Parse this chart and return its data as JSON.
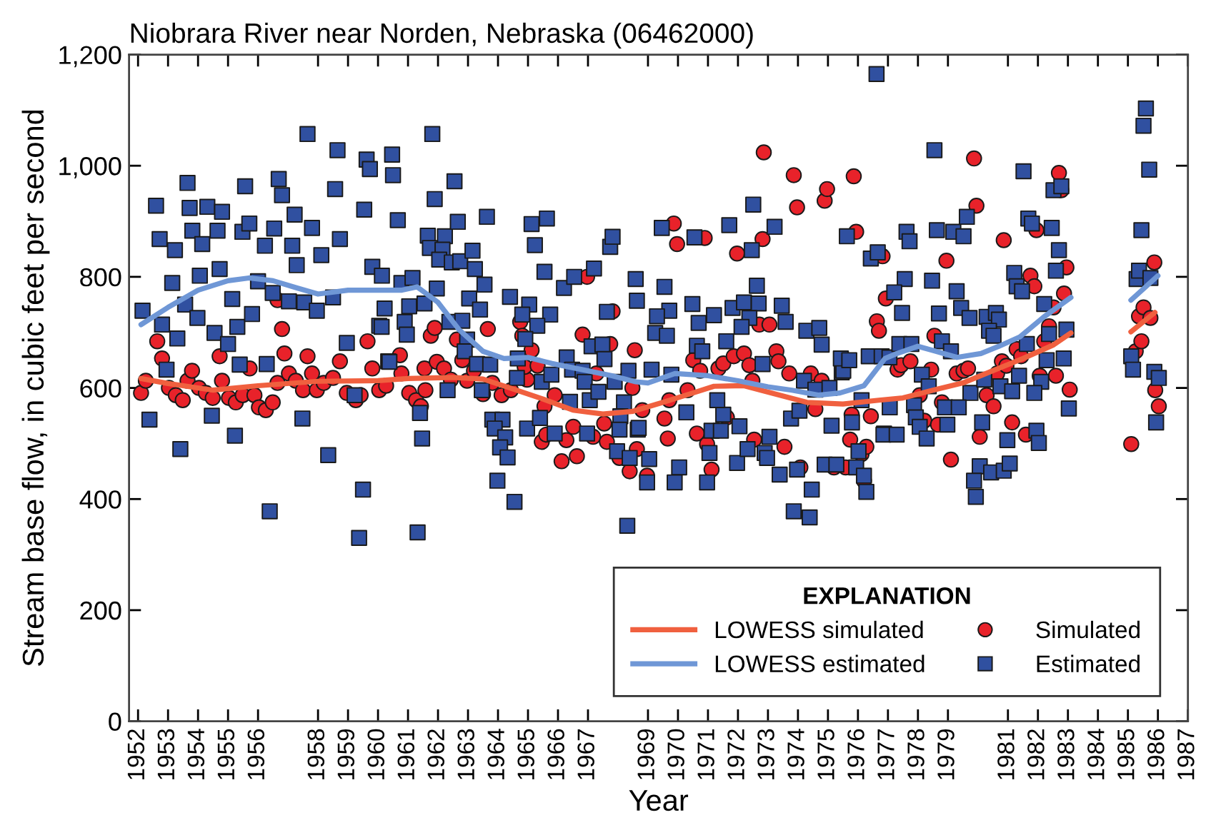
{
  "chart_data": {
    "type": "scatter",
    "title": "Niobrara River near Norden, Nebraska (06462000)",
    "xlabel": "Year",
    "ylabel": "Stream base flow, in cubic feet per second",
    "legend_title": "EXPLANATION",
    "legend": "bottom right",
    "xlim": [
      1951.7,
      1987.0
    ],
    "ylim": [
      0,
      1200
    ],
    "xticks": [
      1952,
      1953,
      1954,
      1955,
      1956,
      1958,
      1959,
      1960,
      1961,
      1962,
      1963,
      1964,
      1965,
      1966,
      1967,
      1969,
      1970,
      1971,
      1972,
      1973,
      1974,
      1975,
      1976,
      1977,
      1978,
      1979,
      1981,
      1982,
      1983,
      1984,
      1985,
      1986,
      1987
    ],
    "yticks": [
      0,
      200,
      400,
      600,
      800,
      {
        "value": 1000,
        "label": "1,000"
      },
      {
        "value": 1200,
        "label": "1,200"
      }
    ],
    "series": [
      {
        "name": "LOWESS simulated",
        "type": "line",
        "color": "#f0603f",
        "marker": "none",
        "x": [
          1952.1,
          1953.0,
          1954.5,
          1956.0,
          1958.0,
          1960.0,
          1961.0,
          1962.5,
          1963.5,
          1964.4,
          1965.5,
          1966.5,
          1967.5,
          1968.5,
          1969.5,
          1970.5,
          1971.2,
          1972.2,
          1973.1,
          1974.3,
          1975.5,
          1976.7,
          1977.5,
          1978.5,
          1979.5,
          1980.5,
          1981.5,
          1982.5,
          1983.1,
          1984.0,
          1985.1,
          1985.9
        ],
        "values": [
          617,
          608,
          596,
          604,
          612,
          613,
          617,
          619,
          616,
          600,
          580,
          560,
          553,
          558,
          574,
          591,
          603,
          604,
          591,
          574,
          571,
          578,
          582,
          596,
          609,
          631,
          653,
          677,
          699,
          null,
          701,
          736
        ]
      },
      {
        "name": "LOWESS estimated",
        "type": "line",
        "color": "#6f97d6",
        "marker": "none",
        "x": [
          1952.1,
          1953.0,
          1954.0,
          1955.0,
          1955.7,
          1956.5,
          1957.3,
          1958.0,
          1959.0,
          1960.3,
          1960.8,
          1961.3,
          1962.0,
          1962.7,
          1963.5,
          1964.2,
          1965.0,
          1965.8,
          1966.8,
          1967.8,
          1968.6,
          1969.0,
          1969.9,
          1971.0,
          1972.0,
          1973.0,
          1973.8,
          1974.7,
          1975.4,
          1976.2,
          1976.9,
          1977.3,
          1978.0,
          1978.6,
          1979.3,
          1980.1,
          1980.7,
          1981.4,
          1982.2,
          1983.1,
          1984.0,
          1985.1,
          1986.0
        ],
        "values": [
          714,
          745,
          776,
          793,
          798,
          793,
          780,
          769,
          776,
          776,
          776,
          782,
          754,
          705,
          666,
          653,
          655,
          644,
          633,
          622,
          611,
          609,
          626,
          622,
          613,
          602,
          596,
          587,
          591,
          604,
          653,
          662,
          675,
          666,
          655,
          662,
          675,
          692,
          728,
          763,
          null,
          758,
          802
        ]
      },
      {
        "name": "Simulated",
        "type": "scatter",
        "color": "#e8222a",
        "marker": "circle",
        "x": [
          1952.1,
          1952.26,
          1952.64,
          1952.8,
          1953.03,
          1953.26,
          1953.49,
          1953.65,
          1953.8,
          1954.03,
          1954.26,
          1954.49,
          1954.72,
          1954.8,
          1955.03,
          1955.26,
          1955.49,
          1955.72,
          1955.88,
          1956.03,
          1956.26,
          1956.49,
          1956.65,
          1956.65,
          1956.8,
          1956.88,
          1957.03,
          1957.26,
          1957.5,
          1957.65,
          1957.8,
          1957.96,
          1958.19,
          1958.5,
          1958.73,
          1958.96,
          1959.26,
          1959.42,
          1959.65,
          1959.81,
          1960.04,
          1960.27,
          1960.73,
          1960.78,
          1961.04,
          1961.27,
          1961.43,
          1961.58,
          1961.55,
          1961.76,
          1961.89,
          1961.96,
          1962.2,
          1962.43,
          1962.63,
          1962.81,
          1962.97,
          1963.2,
          1963.5,
          1963.66,
          1963.81,
          1964.12,
          1964.43,
          1964.74,
          1964.81,
          1965.12,
          1964.97,
          1964.89,
          1965.32,
          1965.55,
          1965.46,
          1965.61,
          1965.89,
          1966.12,
          1966.28,
          1966.51,
          1966.63,
          1966.82,
          1966.97,
          1967.17,
          1967.28,
          1967.54,
          1967.63,
          1967.74,
          1967.82,
          1968.05,
          1968.39,
          1968.48,
          1968.56,
          1968.63,
          1968.81,
          1968.97,
          1969.71,
          1969.66,
          1969.55,
          1969.86,
          1969.97,
          1970.32,
          1970.51,
          1970.74,
          1970.89,
          1970.63,
          1970.97,
          1971.12,
          1971.35,
          1971.51,
          1971.63,
          1971.86,
          1971.97,
          1972.2,
          1972.38,
          1972.48,
          1972.54,
          1972.71,
          1972.82,
          1972.86,
          1973.05,
          1973.28,
          1973.35,
          1973.55,
          1973.71,
          1973.86,
          1973.97,
          1974.08,
          1974.43,
          1974.58,
          1974.79,
          1974.89,
          1974.97,
          1975.2,
          1975.59,
          1975.74,
          1975.79,
          1975.86,
          1975.94,
          1976.12,
          1976.2,
          1976.28,
          1976.43,
          1976.63,
          1976.7,
          1976.93,
          1976.82,
          1977.32,
          1977.44,
          1977.75,
          1978.06,
          1978.21,
          1978.44,
          1978.55,
          1978.67,
          1978.8,
          1978.95,
          1979.1,
          1979.29,
          1979.52,
          1979.67,
          1979.87,
          1979.95,
          1980.06,
          1980.29,
          1980.52,
          1980.64,
          1980.8,
          1980.86,
          1980.95,
          1981.14,
          1981.29,
          1981.44,
          1981.6,
          1981.75,
          1981.88,
          1981.95,
          1982.06,
          1982.21,
          1982.37,
          1982.52,
          1982.6,
          1982.7,
          1982.78,
          1982.87,
          1982.95,
          1983.06,
          1985.11,
          1985.26,
          1985.37,
          1985.45,
          1985.52,
          1985.75,
          1985.88,
          1985.91,
          1986.03
        ],
        "values": [
          591,
          613,
          684,
          653,
          600,
          587,
          578,
          613,
          631,
          600,
          591,
          582,
          657,
          613,
          582,
          574,
          587,
          635,
          587,
          565,
          560,
          574,
          609,
          758,
          706,
          662,
          626,
          613,
          596,
          657,
          626,
          596,
          609,
          618,
          648,
          591,
          578,
          587,
          684,
          635,
          596,
          604,
          659,
          626,
          591,
          578,
          567,
          596,
          635,
          694,
          708,
          647,
          635,
          615,
          687,
          650,
          613,
          631,
          589,
          706,
          609,
          587,
          596,
          719,
          694,
          668,
          615,
          638,
          640,
          567,
          503,
          516,
          587,
          468,
          506,
          530,
          477,
          696,
          800,
          512,
          626,
          536,
          503,
          679,
          738,
          474,
          450,
          600,
          668,
          490,
          560,
          442,
          578,
          509,
          545,
          896,
          859,
          596,
          650,
          631,
          870,
          518,
          499,
          453,
          635,
          644,
          547,
          657,
          842,
          662,
          641,
          613,
          507,
          714,
          868,
          1024,
          714,
          666,
          648,
          494,
          626,
          983,
          925,
          457,
          626,
          562,
          613,
          937,
          958,
          457,
          457,
          507,
          552,
          981,
          881,
          481,
          433,
          494,
          549,
          720,
          703,
          761,
          837,
          633,
          641,
          648,
          587,
          541,
          633,
          694,
          534,
          574,
          829,
          471,
          626,
          631,
          635,
          1013,
          928,
          512,
          587,
          567,
          626,
          648,
          866,
          640,
          538,
          670,
          657,
          516,
          802,
          783,
          884,
          622,
          684,
          711,
          745,
          622,
          987,
          956,
          770,
          817,
          597,
          499,
          666,
          729,
          684,
          745,
          726,
          826,
          596,
          567
        ]
      },
      {
        "name": "Estimated",
        "type": "scatter",
        "color": "#3050a0",
        "marker": "square",
        "x": [
          1952.15,
          1952.6,
          1952.72,
          1953.14,
          1952.38,
          1952.95,
          1952.8,
          1953.23,
          1953.41,
          1953.65,
          1953.72,
          1953.81,
          1954.14,
          1954.06,
          1953.57,
          1953.98,
          1953.31,
          1954.31,
          1954.65,
          1954.8,
          1954.72,
          1954.55,
          1955.0,
          1955.31,
          1955.14,
          1954.46,
          1955.23,
          1955.57,
          1955.48,
          1955.71,
          1955.8,
          1955.39,
          1956.29,
          1956.39,
          1956.0,
          1956.23,
          1956.54,
          1956.69,
          1956.8,
          1956.49,
          1957.03,
          1957.14,
          1957.22,
          1957.29,
          1957.65,
          1957.54,
          1957.8,
          1958.11,
          1957.96,
          1957.48,
          1958.34,
          1958.57,
          1958.65,
          1958.73,
          1958.5,
          1958.96,
          1959.5,
          1959.37,
          1959.22,
          1959.54,
          1959.62,
          1959.73,
          1959.81,
          1960.13,
          1960.04,
          1960.34,
          1960.47,
          1960.22,
          1960.12,
          1961.81,
          1960.5,
          1960.66,
          1961.89,
          1962.55,
          1961.66,
          1962.23,
          1961.73,
          1962.15,
          1962.04,
          1962.46,
          1962.74,
          1962.66,
          1963.15,
          1963.23,
          1963.63,
          1963.55,
          1960.78,
          1961.15,
          1961.04,
          1961.55,
          1961.96,
          1960.89,
          1960.96,
          1962.38,
          1962.81,
          1963.04,
          1963.4,
          1962.97,
          1962.89,
          1963.3,
          1963.74,
          1963.46,
          1962.32,
          1960.38,
          1961.4,
          1961.47,
          1961.32,
          1964.4,
          1965.04,
          1964.81,
          1965.74,
          1965.31,
          1965.12,
          1965.23,
          1965.63,
          1964.91,
          1964.66,
          1964.63,
          1963.81,
          1964.15,
          1963.89,
          1964.24,
          1964.07,
          1964.32,
          1963.98,
          1964.55,
          1964.97,
          1965.4,
          1965.46,
          1965.78,
          1965.89,
          1965.55,
          1966.2,
          1966.54,
          1967.2,
          1967.74,
          1967.82,
          1966.29,
          1966.47,
          1966.82,
          1967.12,
          1967.48,
          1967.55,
          1966.89,
          1966.4,
          1967.06,
          1967.35,
          1966.97,
          1967.63,
          1967.89,
          1968.2,
          1968.08,
          1968.05,
          1967.97,
          1968.39,
          1968.31,
          1968.59,
          1968.63,
          1968.66,
          1969.55,
          1969.46,
          1969.71,
          1969.3,
          1969.24,
          1969.63,
          1970.48,
          1970.69,
          1971.2,
          1970.55,
          1971.71,
          1972.51,
          1973.22,
          1972.46,
          1971.82,
          1972.2,
          1972.63,
          1972.69,
          1972.38,
          1972.12,
          1973.46,
          1973.59,
          1974.28,
          1974.71,
          1974.79,
          1975.63,
          1976.43,
          1976.66,
          1976.62,
          1970.63,
          1971.61,
          1970.81,
          1972.82,
          1969.12,
          1969.78,
          1968.35,
          1968.69,
          1969.04,
          1968.97,
          1970.04,
          1969.89,
          1970.97,
          1970.28,
          1971.12,
          1971.43,
          1972.05,
          1971.51,
          1971.31,
          1971.05,
          1971.97,
          1972.32,
          1972.89,
          1972.97,
          1973.05,
          1973.39,
          1973.97,
          1973.86,
          1974.39,
          1974.46,
          1973.77,
          1974.05,
          1974.2,
          1974.58,
          1975.05,
          1975.12,
          1974.89,
          1975.28,
          1975.46,
          1975.51,
          1975.43,
          1975.71,
          1976.12,
          1975.8,
          1976.02,
          1975.94,
          1976.2,
          1976.28,
          1976.36,
          1976.79,
          1976.87,
          1977.05,
          1978.55,
          1977.62,
          1977.72,
          1978.63,
          1979.18,
          1979.52,
          1979.63,
          1977.56,
          1977.21,
          1978.47,
          1979.29,
          1977.47,
          1978.7,
          1979.44,
          1979.72,
          1980.29,
          1980.6,
          1980.7,
          1980.37,
          1980.52,
          1977.38,
          1977.78,
          1978.8,
          1979.1,
          1978.13,
          1978.36,
          1979.75,
          1980.21,
          1980.75,
          1981.14,
          1977.06,
          1977.87,
          1978.9,
          1979.36,
          1977.93,
          1978.06,
          1978.98,
          1976.85,
          1977.29,
          1978.29,
          1980.14,
          1980.98,
          1980.06,
          1979.87,
          1979.93,
          1980.44,
          1980.86,
          1981.06,
          1981.37,
          1981.63,
          1981.21,
          1981.29,
          1981.47,
          1981.52,
          1981.68,
          1981.8,
          1982.21,
          1982.46,
          1982.52,
          1982.78,
          1982.7,
          1982.6,
          1982.29,
          1982.11,
          1981.88,
          1982.37,
          1982.86,
          1982.95,
          1983.03,
          1981.95,
          1982.03,
          1985.11,
          1985.17,
          1985.29,
          1985.37,
          1985.45,
          1985.52,
          1985.6,
          1985.71,
          1985.75,
          1985.88,
          1986.03,
          1985.94
        ],
        "values": [
          739,
          928,
          868,
          789,
          543,
          633,
          714,
          848,
          490,
          969,
          924,
          883,
          859,
          802,
          750,
          726,
          689,
          926,
          883,
          917,
          814,
          699,
          679,
          710,
          760,
          550,
          514,
          963,
          881,
          896,
          733,
          642,
          643,
          378,
          792,
          856,
          887,
          976,
          947,
          771,
          756,
          856,
          912,
          821,
          1057,
          754,
          888,
          839,
          739,
          545,
          479,
          958,
          1028,
          868,
          763,
          681,
          417,
          330,
          587,
          921,
          1011,
          994,
          818,
          802,
          712,
          648,
          1020,
          743,
          710,
          1057,
          983,
          902,
          940,
          972,
          874,
          873,
          852,
          849,
          831,
          826,
          828,
          899,
          847,
          814,
          908,
          786,
          789,
          798,
          747,
          752,
          779,
          719,
          696,
          719,
          721,
          761,
          741,
          687,
          666,
          643,
          642,
          596,
          596,
          647,
          555,
          509,
          340,
          764,
          750,
          732,
          732,
          712,
          895,
          857,
          905,
          688,
          653,
          618,
          543,
          543,
          527,
          511,
          493,
          475,
          433,
          395,
          527,
          546,
          611,
          624,
          518,
          809,
          780,
          800,
          815,
          854,
          872,
          655,
          633,
          631,
          675,
          678,
          652,
          611,
          575,
          578,
          593,
          518,
          737,
          611,
          574,
          549,
          525,
          486,
          474,
          352,
          796,
          757,
          525,
          782,
          888,
          739,
          729,
          699,
          694,
          751,
          717,
          731,
          871,
          893,
          930,
          890,
          848,
          744,
          754,
          784,
          752,
          726,
          710,
          748,
          719,
          703,
          708,
          678,
          873,
          833,
          844,
          1165,
          676,
          684,
          666,
          643,
          633,
          624,
          631,
          528,
          472,
          430,
          457,
          430,
          430,
          556,
          523,
          523,
          531,
          552,
          578,
          483,
          465,
          490,
          483,
          474,
          512,
          444,
          453,
          378,
          367,
          417,
          545,
          559,
          613,
          597,
          600,
          532,
          462,
          462,
          628,
          631,
          653,
          650,
          578,
          538,
          486,
          457,
          442,
          413,
          657,
          657,
          518,
          655,
          1028,
          881,
          864,
          884,
          881,
          873,
          908,
          796,
          772,
          793,
          774,
          735,
          734,
          744,
          726,
          728,
          735,
          723,
          703,
          694,
          679,
          679,
          684,
          666,
          624,
          603,
          591,
          615,
          603,
          594,
          565,
          569,
          565,
          565,
          547,
          530,
          534,
          516,
          516,
          509,
          538,
          506,
          459,
          433,
          404,
          448,
          451,
          464,
          622,
          679,
          807,
          783,
          774,
          990,
          905,
          896,
          751,
          888,
          956,
          963,
          848,
          811,
          650,
          611,
          591,
          697,
          653,
          705,
          563,
          523,
          501,
          657,
          633,
          796,
          811,
          884,
          1072,
          1103,
          993,
          798,
          629,
          618,
          538
        ]
      }
    ]
  }
}
